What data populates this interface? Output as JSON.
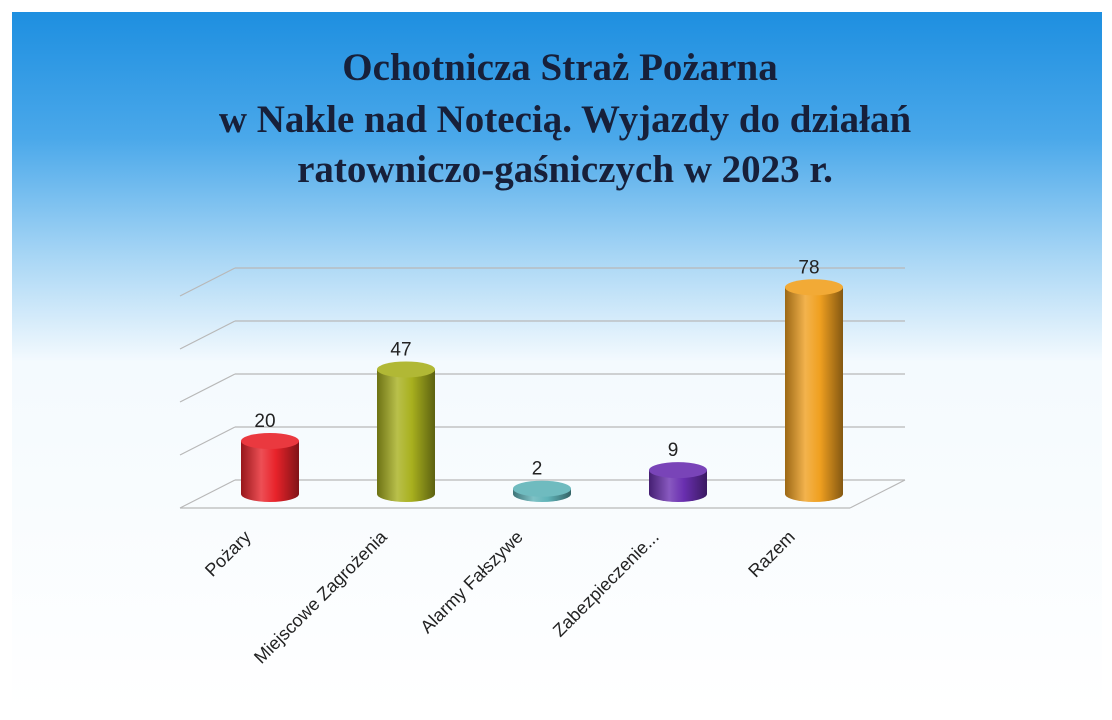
{
  "chart_data": {
    "type": "bar3d",
    "title": [
      "Ochotnicza Straż Pożarna",
      "w Nakle nad Notecią. Wyjazdy do działań",
      "ratowniczo-gaśniczych w 2023 r."
    ],
    "categories": [
      "Pożary",
      "Miejscowe Zagrożenia",
      "Alarmy Fałszywe",
      "Zabezpieczenie...",
      "Razem"
    ],
    "values": [
      20,
      47,
      2,
      9,
      78
    ],
    "colors": [
      "#e8232a",
      "#a8b01e",
      "#5fb3b8",
      "#6a2fb0",
      "#f0a020"
    ],
    "ylim": [
      0,
      80
    ],
    "yticks": [
      0,
      20,
      40,
      60,
      80
    ],
    "grid": true
  }
}
